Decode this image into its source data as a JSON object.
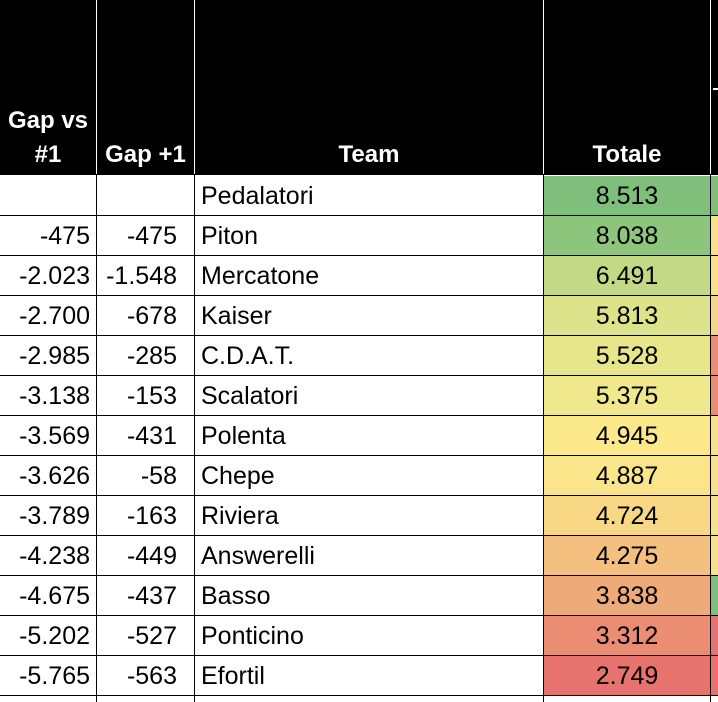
{
  "headers": {
    "gap_vs_first_line1": "Gap vs",
    "gap_vs_first_line2": "#1",
    "gap_plus_one": "Gap +1",
    "team": "Team",
    "total": "Totale"
  },
  "rows": [
    {
      "gap_vs_first": "",
      "gap_plus_one": "",
      "team": "Pedalatori",
      "total": "8.513",
      "color": "#7fbf7b"
    },
    {
      "gap_vs_first": "-475",
      "gap_plus_one": "-475",
      "team": "Piton",
      "total": "8.038",
      "color": "#8ec57d"
    },
    {
      "gap_vs_first": "-2.023",
      "gap_plus_one": "-1.548",
      "team": "Mercatone",
      "total": "6.491",
      "color": "#c4d986"
    },
    {
      "gap_vs_first": "-2.700",
      "gap_plus_one": "-678",
      "team": "Kaiser",
      "total": "5.813",
      "color": "#dde38a"
    },
    {
      "gap_vs_first": "-2.985",
      "gap_plus_one": "-285",
      "team": "C.D.A.T.",
      "total": "5.528",
      "color": "#e8e68b"
    },
    {
      "gap_vs_first": "-3.138",
      "gap_plus_one": "-153",
      "team": "Scalatori",
      "total": "5.375",
      "color": "#efe88c"
    },
    {
      "gap_vs_first": "-3.569",
      "gap_plus_one": "-431",
      "team": "Polenta",
      "total": "4.945",
      "color": "#fbe98c"
    },
    {
      "gap_vs_first": "-3.626",
      "gap_plus_one": "-58",
      "team": "Chepe",
      "total": "4.887",
      "color": "#fbe58a"
    },
    {
      "gap_vs_first": "-3.789",
      "gap_plus_one": "-163",
      "team": "Riviera",
      "total": "4.724",
      "color": "#f8d885"
    },
    {
      "gap_vs_first": "-4.238",
      "gap_plus_one": "-449",
      "team": "Answerelli",
      "total": "4.275",
      "color": "#f4c07f"
    },
    {
      "gap_vs_first": "-4.675",
      "gap_plus_one": "-437",
      "team": "Basso",
      "total": "3.838",
      "color": "#efaa7a"
    },
    {
      "gap_vs_first": "-5.202",
      "gap_plus_one": "-527",
      "team": "Ponticino",
      "total": "3.312",
      "color": "#ea8d73"
    },
    {
      "gap_vs_first": "-5.765",
      "gap_plus_one": "-563",
      "team": "Efortil",
      "total": "2.749",
      "color": "#e6736d"
    }
  ],
  "edge_colors": [
    "#7fbf7b",
    "#f8df8a",
    "#f8df8a",
    "#f4d589",
    "#ea8d73",
    "#ea8d73",
    "#f8df8a",
    "#f8df8a",
    "#f8df8a",
    "#f8df8a",
    "#7fbf7b",
    "#e6736d",
    "#e6736d"
  ]
}
